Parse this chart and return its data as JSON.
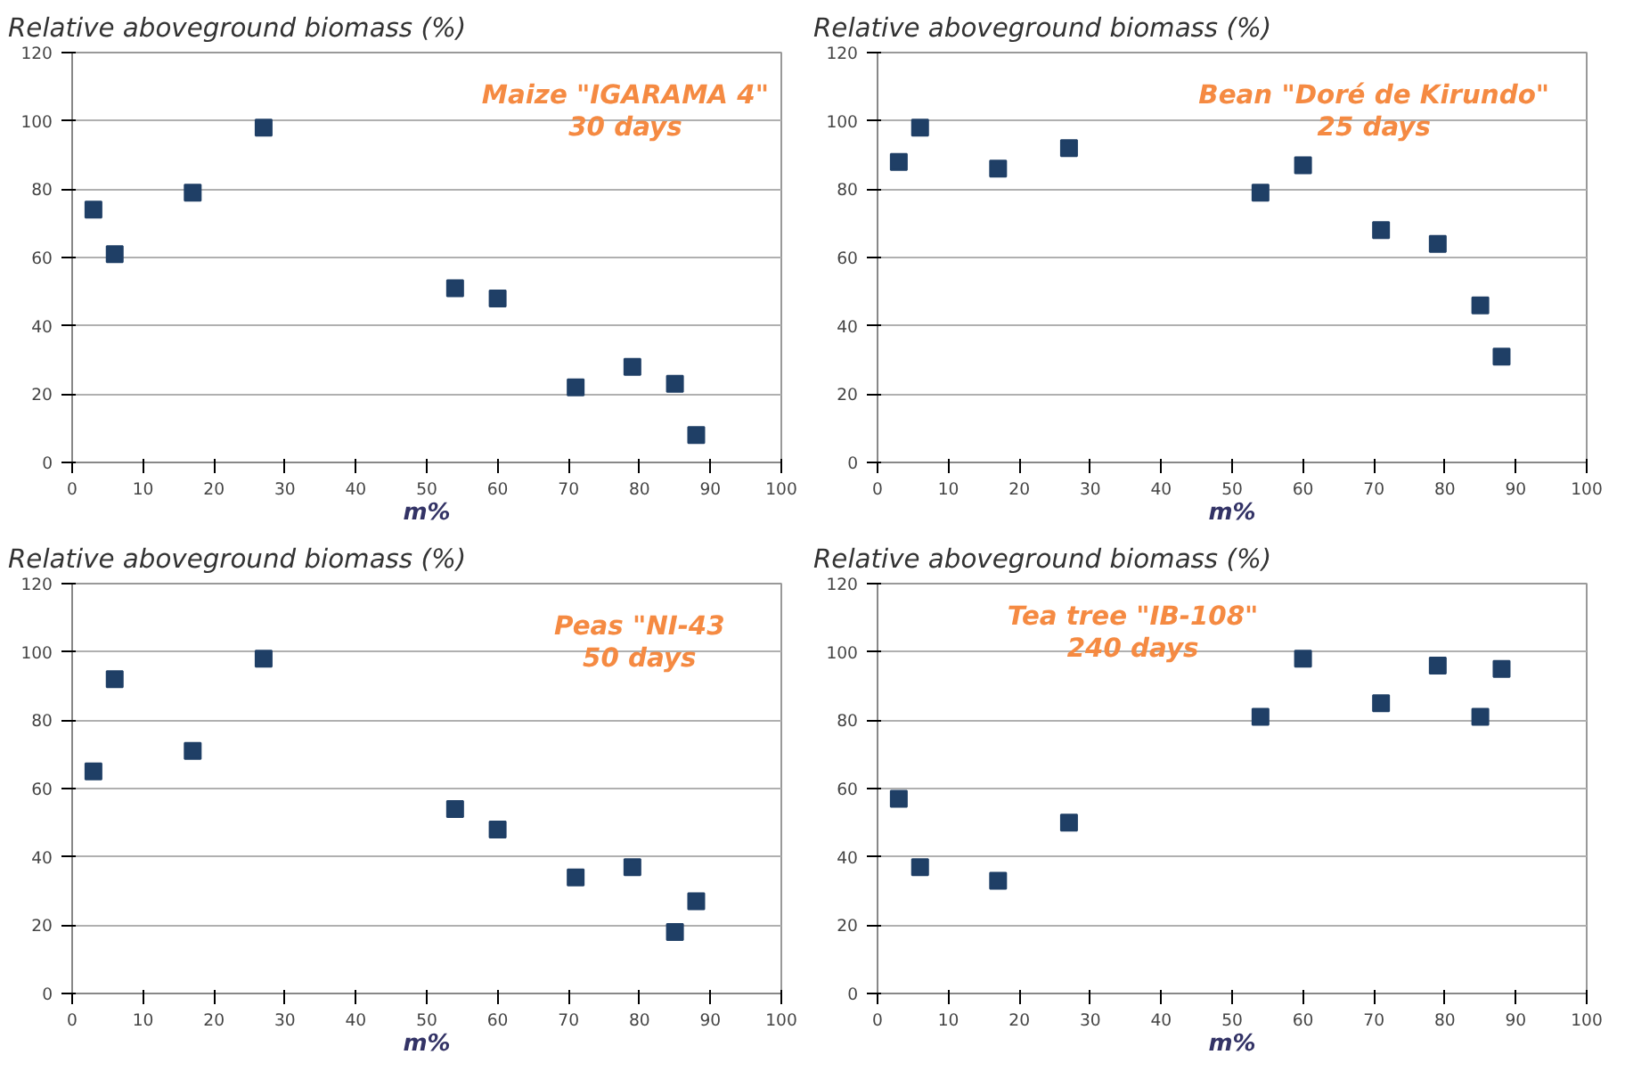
{
  "chart_data": [
    {
      "type": "scatter",
      "ylabel": "Relative aboveground biomass (%)",
      "xlabel": "m%",
      "annotations": [
        "Maize \"IGARAMA 4\"",
        "30 days"
      ],
      "x": [
        3,
        6,
        17,
        27,
        54,
        60,
        71,
        79,
        85,
        88
      ],
      "series": [
        {
          "color": "#1f3f66",
          "values": [
            74,
            61,
            79,
            98,
            51,
            48,
            22,
            28,
            23,
            8
          ]
        }
      ],
      "xlim": [
        0,
        100
      ],
      "ylim": [
        0,
        120
      ],
      "xticks": [
        0,
        10,
        20,
        30,
        40,
        50,
        60,
        70,
        80,
        90,
        100
      ],
      "yticks": [
        0,
        20,
        40,
        60,
        80,
        100,
        120
      ],
      "grid": "y",
      "marker": "square"
    },
    {
      "type": "scatter",
      "ylabel": "Relative aboveground biomass (%)",
      "xlabel": "m%",
      "annotations": [
        "Bean \"Doré de Kirundo\"",
        "25 days"
      ],
      "x": [
        3,
        6,
        17,
        27,
        54,
        60,
        71,
        79,
        85,
        88
      ],
      "series": [
        {
          "color": "#1f3f66",
          "values": [
            88,
            98,
            86,
            92,
            79,
            87,
            68,
            64,
            46,
            31
          ]
        }
      ],
      "xlim": [
        0,
        100
      ],
      "ylim": [
        0,
        120
      ],
      "xticks": [
        0,
        10,
        20,
        30,
        40,
        50,
        60,
        70,
        80,
        90,
        100
      ],
      "yticks": [
        0,
        20,
        40,
        60,
        80,
        100,
        120
      ],
      "grid": "y",
      "marker": "square"
    },
    {
      "type": "scatter",
      "ylabel": "Relative aboveground biomass (%)",
      "xlabel": "m%",
      "annotations": [
        "Peas \"NI-43",
        "50 days"
      ],
      "x": [
        3,
        6,
        17,
        27,
        54,
        60,
        71,
        79,
        85,
        88
      ],
      "series": [
        {
          "color": "#1f3f66",
          "values": [
            65,
            92,
            71,
            98,
            54,
            48,
            34,
            37,
            18,
            27
          ]
        }
      ],
      "xlim": [
        0,
        100
      ],
      "ylim": [
        0,
        120
      ],
      "xticks": [
        0,
        10,
        20,
        30,
        40,
        50,
        60,
        70,
        80,
        90,
        100
      ],
      "yticks": [
        0,
        20,
        40,
        60,
        80,
        100,
        120
      ],
      "grid": "y",
      "marker": "square"
    },
    {
      "type": "scatter",
      "ylabel": "Relative aboveground biomass (%)",
      "xlabel": "m%",
      "annotations": [
        "Tea tree \"IB-108\"",
        "240 days"
      ],
      "x": [
        3,
        6,
        17,
        27,
        54,
        60,
        71,
        79,
        85,
        88
      ],
      "series": [
        {
          "color": "#1f3f66",
          "values": [
            57,
            37,
            33,
            50,
            81,
            98,
            85,
            96,
            81,
            95
          ]
        }
      ],
      "xlim": [
        0,
        100
      ],
      "ylim": [
        0,
        120
      ],
      "xticks": [
        0,
        10,
        20,
        30,
        40,
        50,
        60,
        70,
        80,
        90,
        100
      ],
      "yticks": [
        0,
        20,
        40,
        60,
        80,
        100,
        120
      ],
      "grid": "y",
      "marker": "square"
    }
  ]
}
